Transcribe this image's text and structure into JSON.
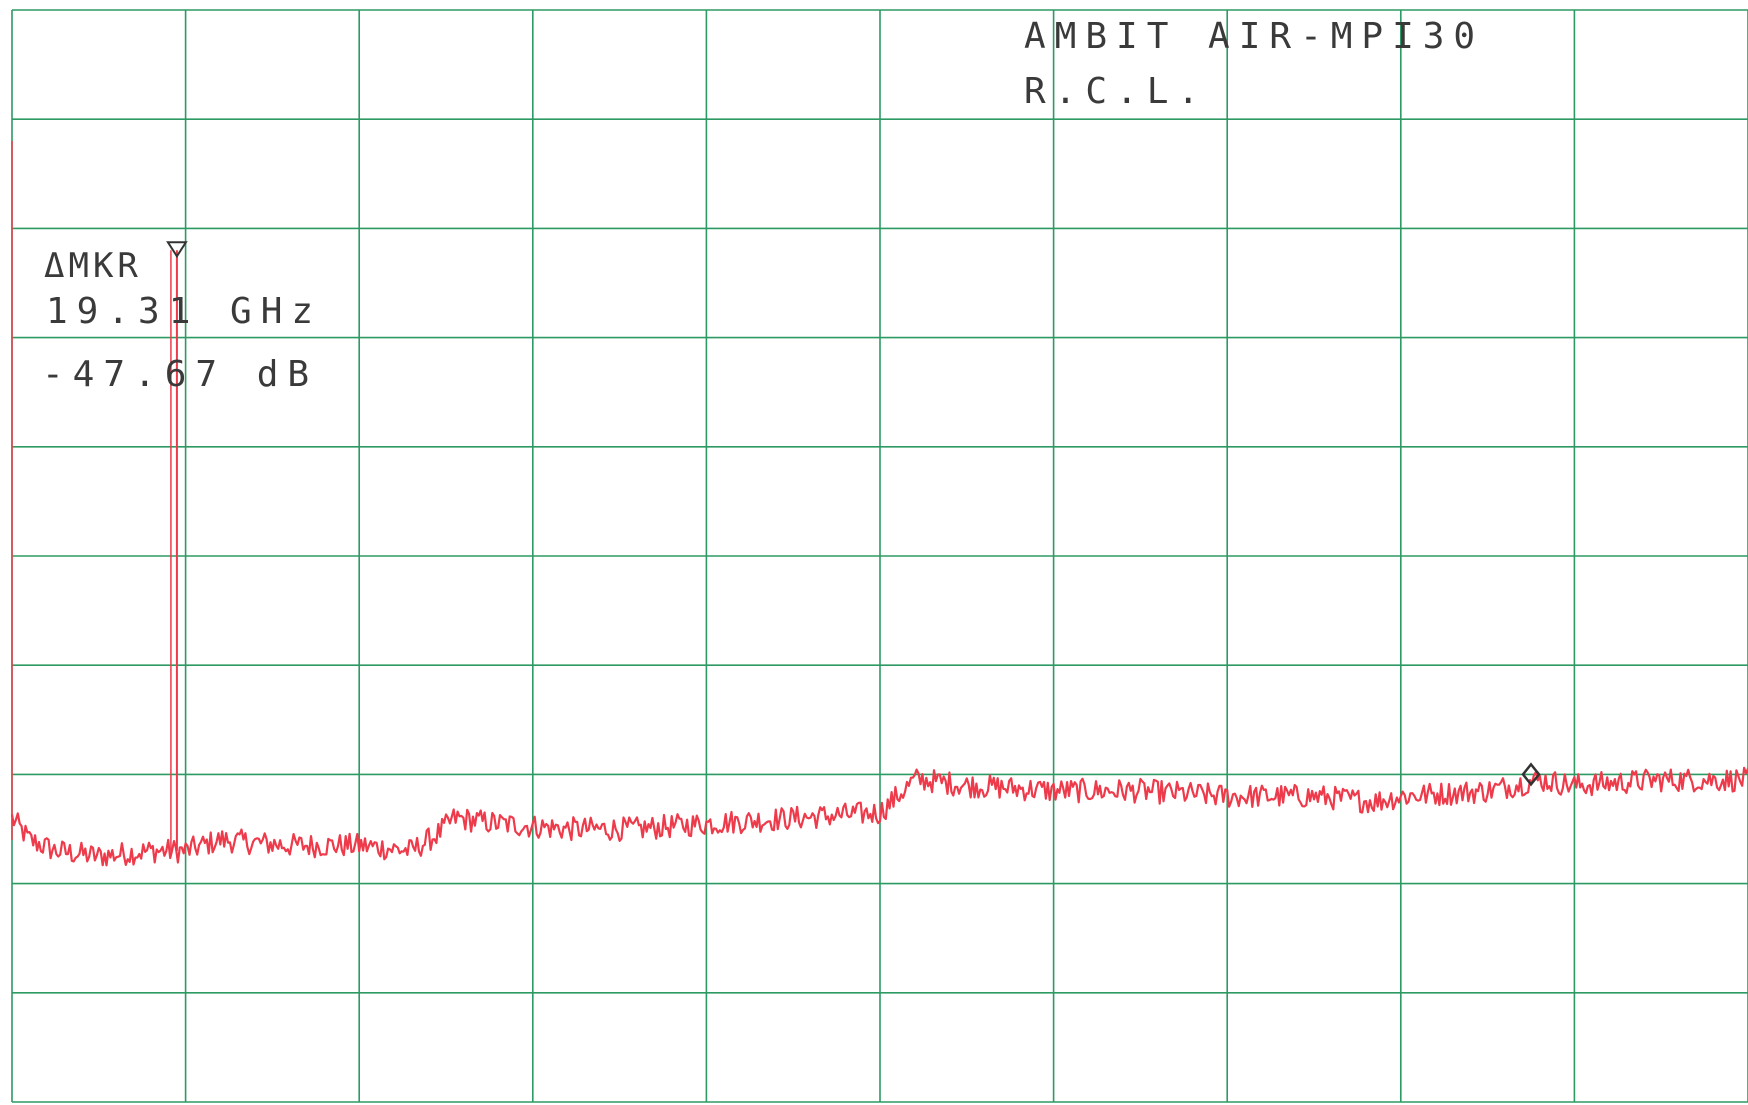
{
  "header": {
    "line1": "AMBIT AIR-MPI30",
    "line2": "R.C.L."
  },
  "marker_readout": {
    "label": "ΔMKR",
    "frequency": "19.31 GHz",
    "level": "-47.67 dB"
  },
  "colors": {
    "grid": "#2e9a63",
    "trace": "#ee3b4b",
    "text": "#3a3a3a",
    "marker": "#333333"
  },
  "chart_data": {
    "type": "line",
    "title": "AMBIT AIR-MPI30",
    "subtitle": "R.C.L.",
    "xlabel": "",
    "ylabel": "",
    "grid": true,
    "grid_divisions": {
      "x": 10,
      "y": 10
    },
    "xlim": [
      0,
      10
    ],
    "ylim": [
      0,
      10
    ],
    "units": "graticule divisions",
    "series": [
      {
        "x": [
          0,
          0.1,
          0.25,
          0.5,
          0.8,
          0.95,
          1.0,
          1.2,
          1.6,
          2.0,
          2.3,
          2.45,
          2.55,
          2.8,
          3.2,
          3.6,
          4.0,
          4.5,
          5.0,
          5.2,
          5.25,
          5.5,
          6.0,
          6.5,
          7.0,
          7.5,
          7.85,
          8.0,
          8.5,
          8.8,
          9.0,
          9.5,
          10.0
        ],
        "y": [
          2.6,
          2.4,
          2.3,
          2.25,
          2.3,
          2.3,
          2.3,
          2.4,
          2.35,
          2.35,
          2.3,
          2.45,
          2.6,
          2.55,
          2.5,
          2.5,
          2.55,
          2.6,
          2.65,
          2.95,
          2.95,
          2.9,
          2.85,
          2.85,
          2.8,
          2.8,
          2.75,
          2.8,
          2.85,
          2.95,
          2.9,
          2.95,
          2.95
        ]
      }
    ],
    "markers": [
      {
        "name": "reference",
        "x": 0.95,
        "y": 7.8
      },
      {
        "name": "delta",
        "x": 8.75,
        "y": 3.0
      }
    ]
  }
}
